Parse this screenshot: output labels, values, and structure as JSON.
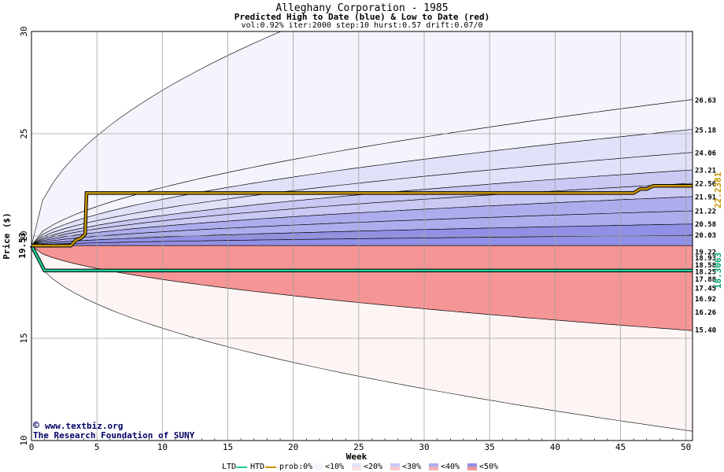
{
  "header": {
    "title": "Alleghany Corporation - 1985",
    "subtitle": "Predicted High to Date (blue) &  Low to Date (red)",
    "params": "vol:0.92% iter:2000 step:10 hurst:0.57 drift:0.07/0"
  },
  "credit": {
    "site": "www.textbiz.org",
    "org": "The Research Foundation of SUNY",
    "symbol": "©"
  },
  "colors": {
    "htd_line": "#c89600",
    "ltd_line": "#22cc99",
    "blue_bands": [
      "#f4f4fd",
      "#e1e1f9",
      "#c9c9f3",
      "#adadee",
      "#9090e6",
      "#7070dc"
    ],
    "red_bands": [
      "#fdf4f4",
      "#fde0e0",
      "#fbcaca",
      "#f8b0b0",
      "#f59595",
      "#f07878"
    ]
  },
  "chart_data": {
    "type": "area",
    "xlabel": "Week",
    "ylabel": "Price ($)",
    "xlim": [
      0,
      50.5
    ],
    "ylim": [
      10,
      30
    ],
    "x_ticks": [
      0,
      5,
      10,
      15,
      20,
      25,
      30,
      35,
      40,
      45,
      50
    ],
    "y_ticks": [
      10,
      15,
      20,
      25,
      30
    ],
    "start_price_label": "19.53",
    "start_price": 19.53,
    "grid": true,
    "high_final_labels": [
      "26.63",
      "25.18",
      "24.06",
      "23.21",
      "22.56",
      "21.91",
      "21.22",
      "20.58",
      "20.03"
    ],
    "low_final_labels": [
      "19.22",
      "18.93",
      "18.58",
      "18.25",
      "17.88",
      "17.45",
      "16.92",
      "16.26",
      "15.40"
    ],
    "htd_final_label": "22.2381",
    "ltd_final_label": "18.3063",
    "htd_series": {
      "x": [
        0,
        3,
        3.4,
        3.8,
        4.1,
        4.2,
        40,
        46,
        46.5,
        47,
        47.5,
        48,
        50.5
      ],
      "y": [
        19.53,
        19.53,
        19.8,
        19.9,
        20.1,
        22.1,
        22.1,
        22.1,
        22.3,
        22.3,
        22.45,
        22.45,
        22.45
      ]
    },
    "ltd_series": {
      "x": [
        0,
        1,
        50.5
      ],
      "y": [
        19.53,
        18.31,
        18.31
      ]
    },
    "legend": {
      "ltd": "LTD",
      "htd": "HTD",
      "prob": "prob:0%",
      "bands": [
        "<10%",
        "<20%",
        "<30%",
        "<40%",
        "<50%"
      ]
    }
  }
}
